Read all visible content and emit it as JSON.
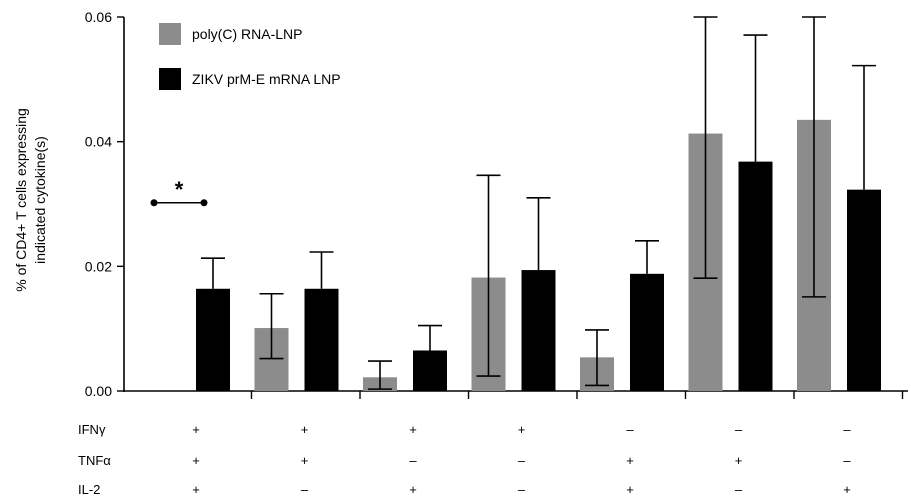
{
  "chart_data": {
    "type": "bar",
    "ylabel": "% of CD4+ T cells expressing indicated cytokine(s)",
    "ylabel_lines": [
      "% of CD4+ T cells expressing",
      "indicated cytokine(s)"
    ],
    "ylim": [
      0,
      0.06
    ],
    "yticks": [
      "0.00",
      "0.02",
      "0.04",
      "0.06"
    ],
    "grid": false,
    "legend_position": "top-left",
    "series": [
      {
        "name": "poly(C) RNA-LNP",
        "color": "#8c8c8c",
        "values": [
          0,
          0.0101,
          0.0022,
          0.0182,
          0.0054,
          0.0413,
          0.0435
        ],
        "err_low": [
          null,
          0.0052,
          0.0003,
          0.0024,
          0.0009,
          0.0181,
          0.0151
        ],
        "err_high": [
          null,
          0.0156,
          0.0048,
          0.0346,
          0.0098,
          0.06,
          0.06
        ]
      },
      {
        "name": "ZIKV prM-E mRNA LNP",
        "color": "#000000",
        "values": [
          0.0164,
          0.0164,
          0.0065,
          0.0194,
          0.0188,
          0.0368,
          0.0323
        ],
        "err_low": [
          null,
          null,
          0.0005,
          null,
          null,
          null,
          null
        ],
        "err_high": [
          0.0213,
          0.0223,
          0.0105,
          0.031,
          0.0241,
          0.0571,
          0.0522
        ]
      }
    ],
    "annotations": [
      {
        "text": "*",
        "from_group": 0,
        "y": 0.0302
      }
    ],
    "condition_rows": [
      {
        "label": "IFNγ",
        "values": [
          "+",
          "+",
          "+",
          "+",
          "–",
          "–",
          "–"
        ]
      },
      {
        "label": "TNFα",
        "values": [
          "+",
          "+",
          "–",
          "–",
          "+",
          "+",
          "–"
        ]
      },
      {
        "label": "IL-2",
        "values": [
          "+",
          "–",
          "+",
          "–",
          "+",
          "–",
          "+"
        ]
      }
    ]
  }
}
